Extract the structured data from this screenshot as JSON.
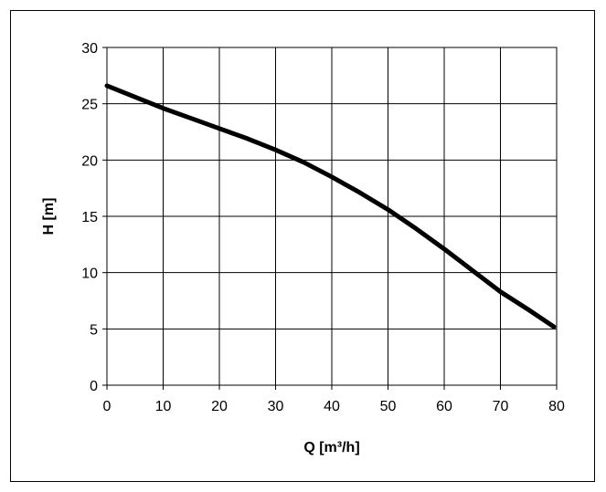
{
  "chart_data": {
    "type": "line",
    "title": "",
    "xlabel": "Q [m³/h]",
    "ylabel": "H [m]",
    "xlim": [
      0,
      80
    ],
    "ylim": [
      0,
      30
    ],
    "xticks": [
      "0",
      "10",
      "20",
      "30",
      "40",
      "50",
      "60",
      "70",
      "80"
    ],
    "yticks": [
      "0",
      "5",
      "10",
      "15",
      "20",
      "25",
      "30"
    ],
    "grid": true,
    "legend": "none",
    "line_color": "#000000",
    "series": [
      {
        "x": [
          0,
          5,
          10,
          15,
          20,
          25,
          30,
          35,
          40,
          45,
          50,
          55,
          60,
          65,
          70,
          75,
          79.5
        ],
        "y": [
          26.6,
          25.6,
          24.6,
          23.7,
          22.8,
          21.9,
          20.9,
          19.8,
          18.5,
          17.1,
          15.6,
          13.9,
          12.1,
          10.2,
          8.3,
          6.7,
          5.2
        ]
      }
    ]
  }
}
